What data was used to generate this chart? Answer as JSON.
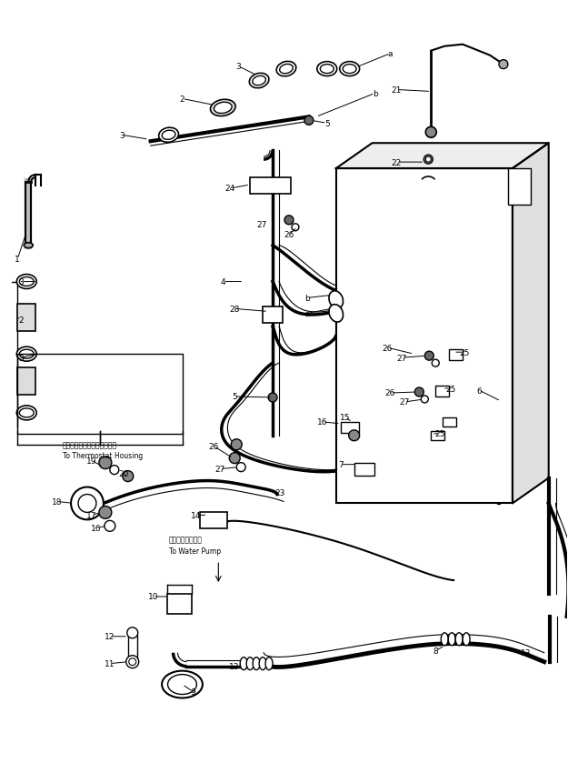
{
  "bg_color": "#ffffff",
  "fig_width": 6.25,
  "fig_height": 8.62,
  "dpi": 100,
  "thermostat_jp": "サーモスタットハウジングへ",
  "thermostat_en": "To Thermostat Housing",
  "waterpump_jp": "ウォータポンプへ",
  "waterpump_en": "To Water Pump"
}
